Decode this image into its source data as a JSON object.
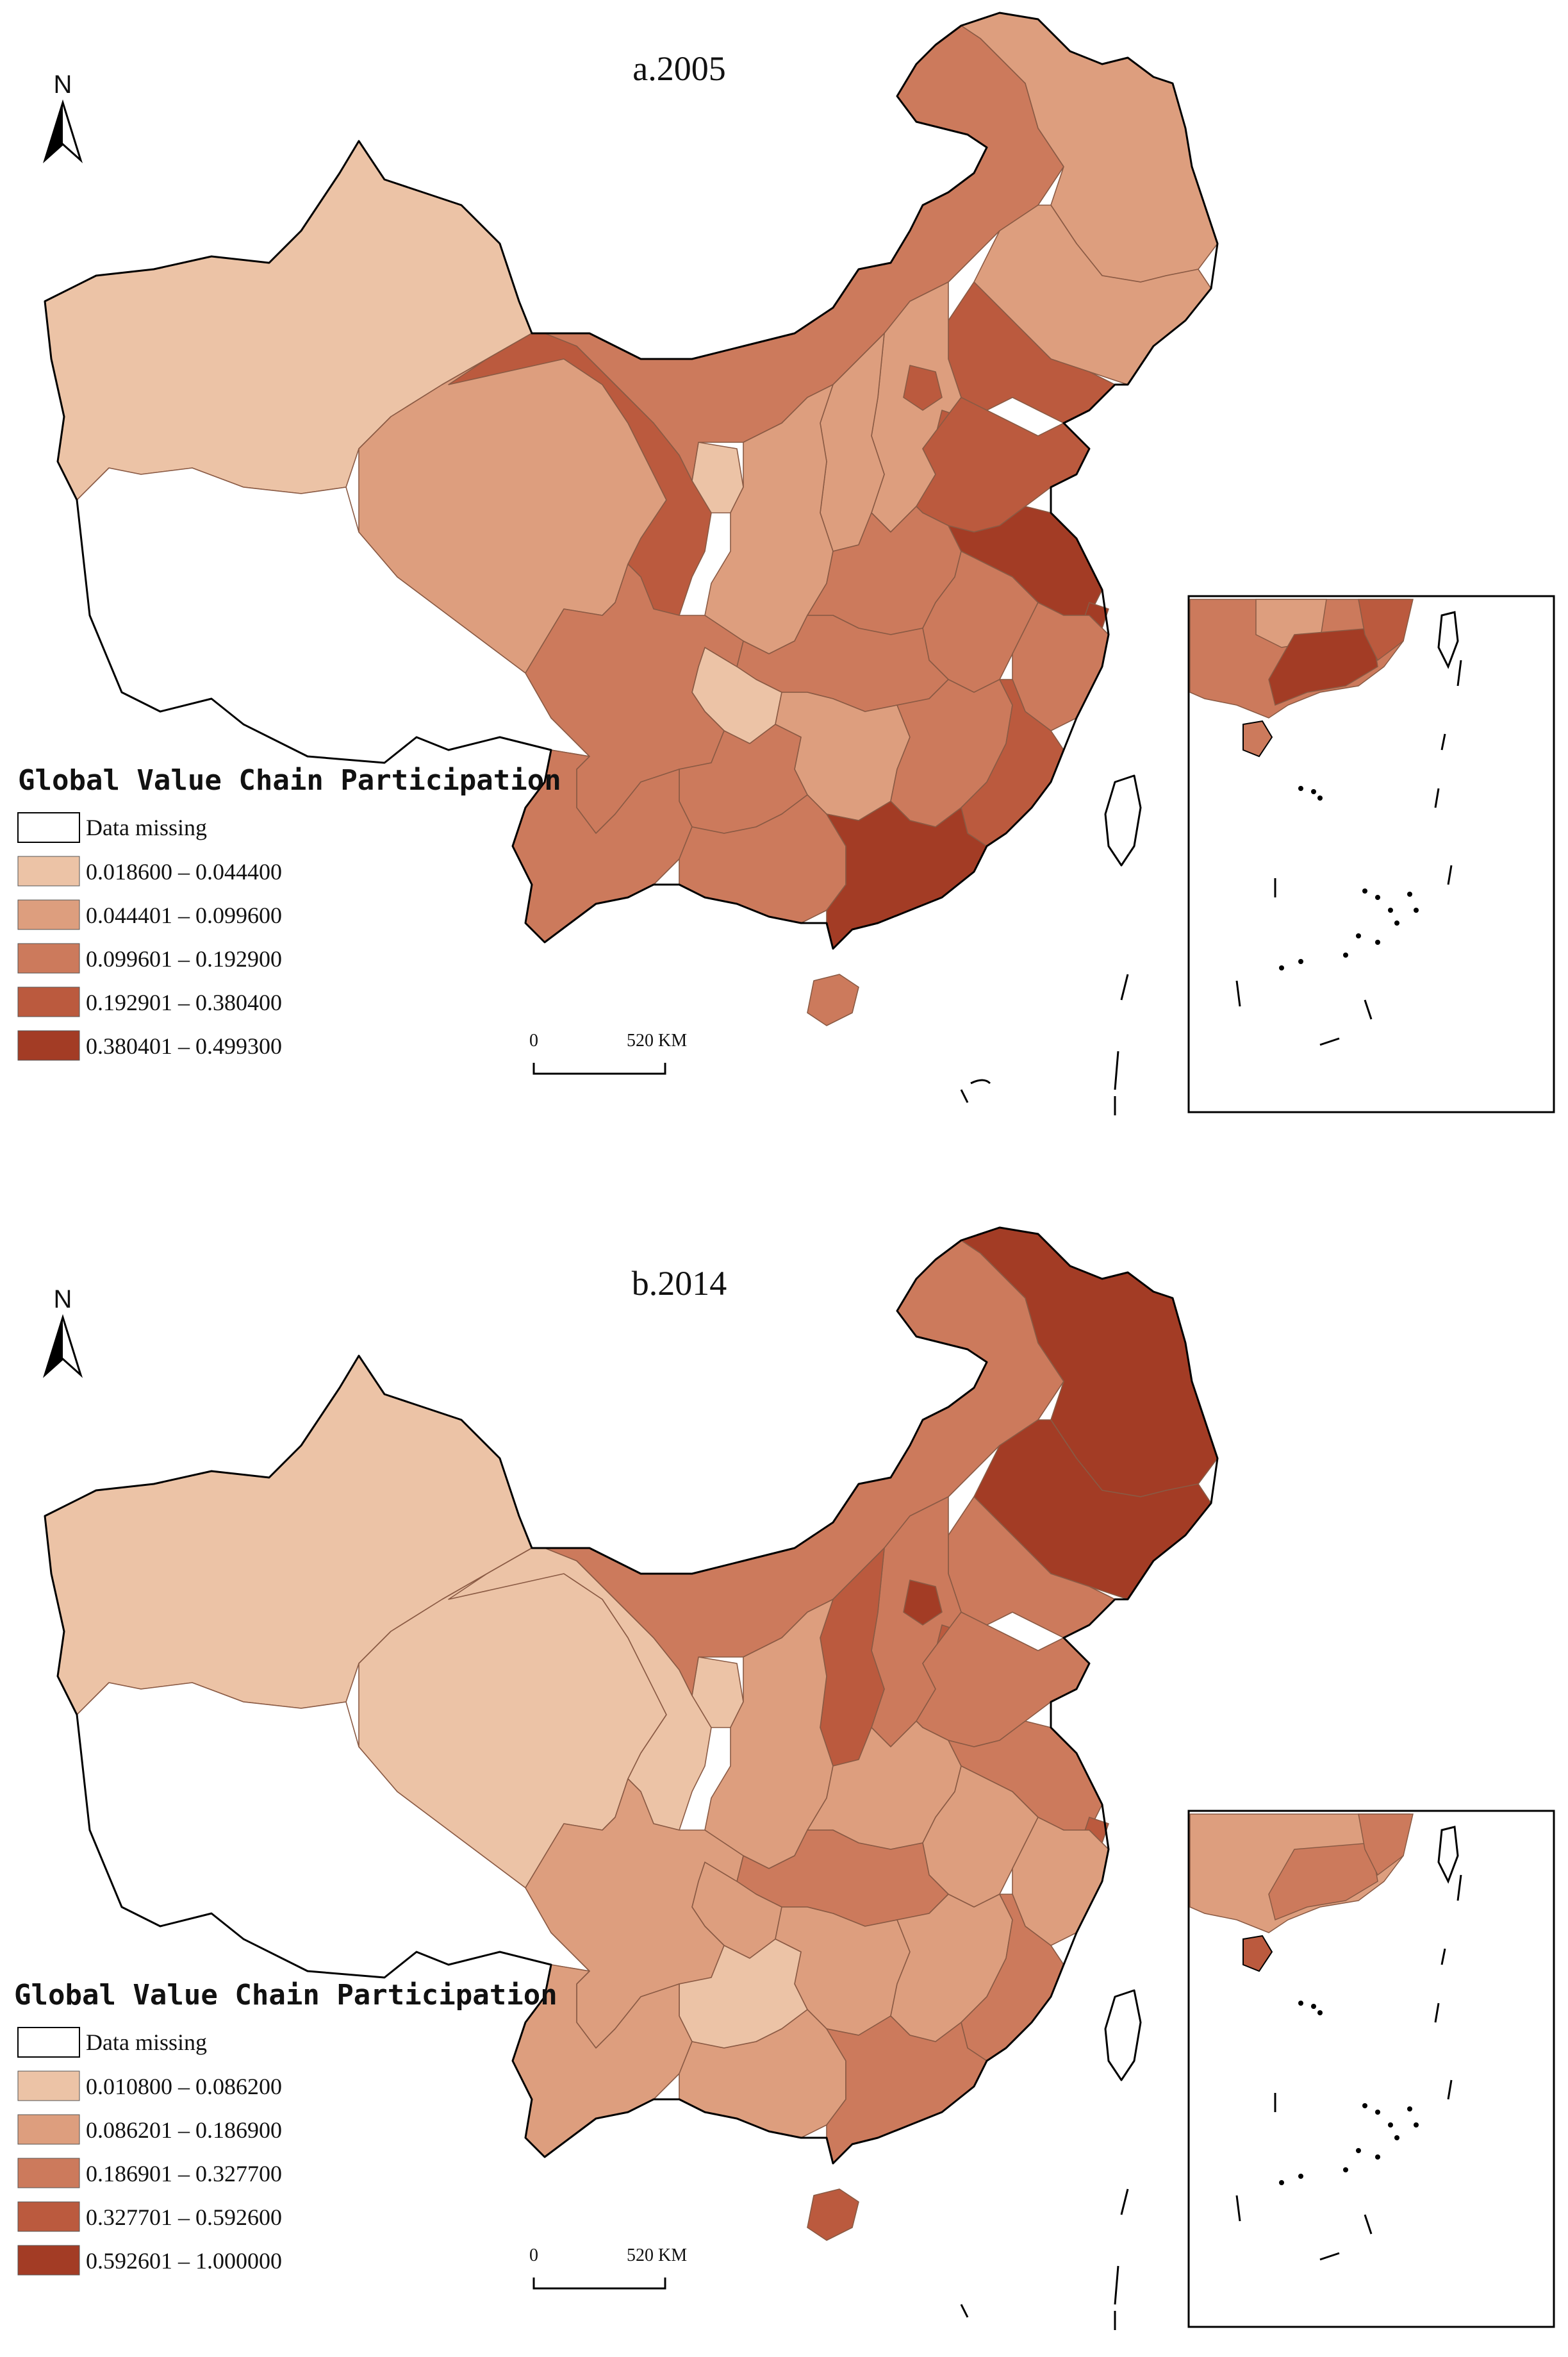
{
  "panels": [
    {
      "title": "a.2005",
      "north_label": "N",
      "legend": {
        "heading": "Global Value Chain Participation",
        "missing_label": "Data missing",
        "classes": [
          {
            "label": "0.018600 – 0.044400",
            "color": "#ecc3a6"
          },
          {
            "label": "0.044401 – 0.099600",
            "color": "#dd9e7e"
          },
          {
            "label": "0.099601 – 0.192900",
            "color": "#cc7a5c"
          },
          {
            "label": "0.192901 – 0.380400",
            "color": "#bb5a3e"
          },
          {
            "label": "0.380401 – 0.499300",
            "color": "#a33c25"
          }
        ]
      },
      "scale": {
        "start": "0",
        "end": "520 KM"
      }
    },
    {
      "title": "b.2014",
      "north_label": "N",
      "legend": {
        "heading": "Global Value Chain Participation",
        "missing_label": "Data missing",
        "classes": [
          {
            "label": "0.010800 – 0.086200",
            "color": "#ecc3a6"
          },
          {
            "label": "0.086201 – 0.186900",
            "color": "#dd9e7e"
          },
          {
            "label": "0.186901 – 0.327700",
            "color": "#cc7a5c"
          },
          {
            "label": "0.327701 – 0.592600",
            "color": "#bb5a3e"
          },
          {
            "label": "0.592601 – 1.000000",
            "color": "#a33c25"
          }
        ]
      },
      "scale": {
        "start": "0",
        "end": "520 KM"
      }
    }
  ]
}
